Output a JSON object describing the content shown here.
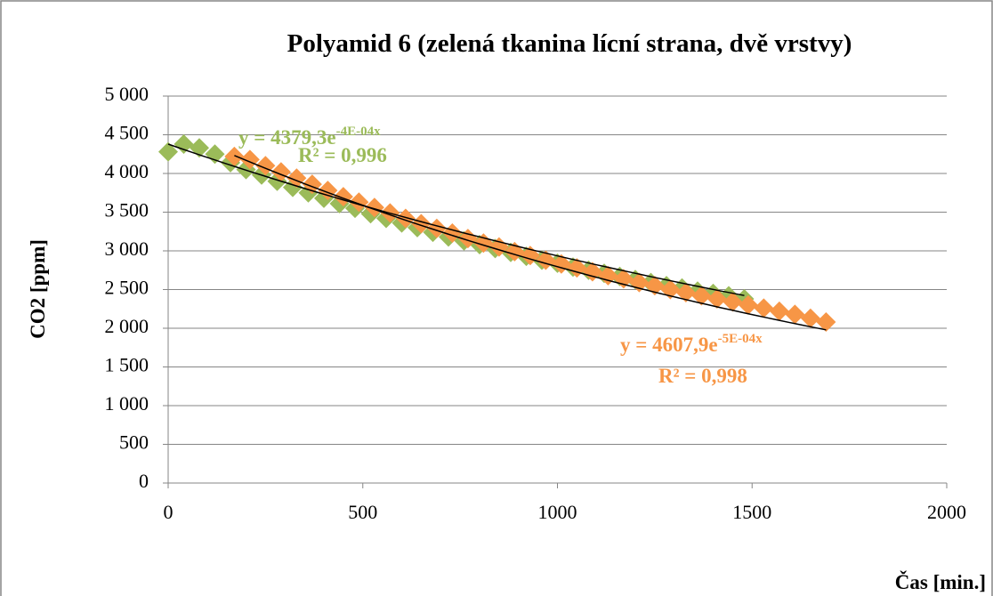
{
  "chart_data": {
    "type": "scatter",
    "title": "Polyamid 6 (zelená tkanina lícní strana, dvě vrstvy)",
    "x_label": "Čas [min.]",
    "y_label": "CO2 [ppm]",
    "xlim": [
      0,
      2000
    ],
    "xticks": [
      0,
      500,
      1000,
      1500,
      2000
    ],
    "ylim": [
      0,
      5000
    ],
    "yticks": [
      0,
      500,
      {
        "value": 1000,
        "label": "1 000"
      },
      {
        "value": 1500,
        "label": "1 500"
      },
      {
        "value": 2000,
        "label": "2 000"
      },
      {
        "value": 2500,
        "label": "2 500"
      },
      {
        "value": 3000,
        "label": "3 000"
      },
      {
        "value": 3500,
        "label": "3 500"
      },
      {
        "value": 4000,
        "label": "4 000"
      },
      {
        "value": 4500,
        "label": "4 500"
      },
      {
        "value": 5000,
        "label": "5 000"
      }
    ],
    "grid": true,
    "series": [
      {
        "color": "#9bbb59",
        "x": [
          0,
          40,
          80,
          120,
          160,
          200,
          240,
          280,
          320,
          360,
          400,
          440,
          480,
          520,
          560,
          600,
          640,
          680,
          720,
          760,
          800,
          840,
          880,
          920,
          960,
          1000,
          1040,
          1080,
          1120,
          1160,
          1200,
          1240,
          1280,
          1320,
          1360,
          1400,
          1440,
          1480
        ],
        "values": [
          4280,
          4380,
          4330,
          4250,
          4140,
          4050,
          3980,
          3900,
          3820,
          3750,
          3680,
          3610,
          3550,
          3480,
          3420,
          3360,
          3300,
          3240,
          3180,
          3130,
          3080,
          3030,
          2980,
          2930,
          2880,
          2840,
          2790,
          2750,
          2710,
          2670,
          2630,
          2590,
          2550,
          2520,
          2480,
          2450,
          2420,
          2380
        ],
        "trendline": {
          "equation": "y = 4379,3e",
          "exponent": "-4E-04x",
          "r2": "R² = 0,996",
          "a": 4379.3,
          "b": -0.0004
        }
      },
      {
        "color": "#f79646",
        "x": [
          170,
          210,
          250,
          290,
          330,
          370,
          410,
          450,
          490,
          530,
          570,
          610,
          650,
          690,
          730,
          770,
          810,
          850,
          890,
          930,
          970,
          1010,
          1050,
          1090,
          1130,
          1170,
          1210,
          1250,
          1290,
          1330,
          1370,
          1410,
          1450,
          1490,
          1530,
          1570,
          1610,
          1650,
          1690
        ],
        "values": [
          4220,
          4180,
          4100,
          4020,
          3940,
          3860,
          3780,
          3700,
          3630,
          3560,
          3490,
          3420,
          3350,
          3290,
          3230,
          3160,
          3100,
          3050,
          2990,
          2940,
          2880,
          2830,
          2780,
          2730,
          2680,
          2640,
          2590,
          2550,
          2500,
          2460,
          2420,
          2380,
          2340,
          2300,
          2260,
          2220,
          2180,
          2130,
          2080
        ],
        "trendline": {
          "equation": "y = 4607,9e",
          "exponent": "-5E-04x",
          "r2": "R² = 0,998",
          "a": 4607.9,
          "b": -0.0005
        }
      }
    ]
  }
}
